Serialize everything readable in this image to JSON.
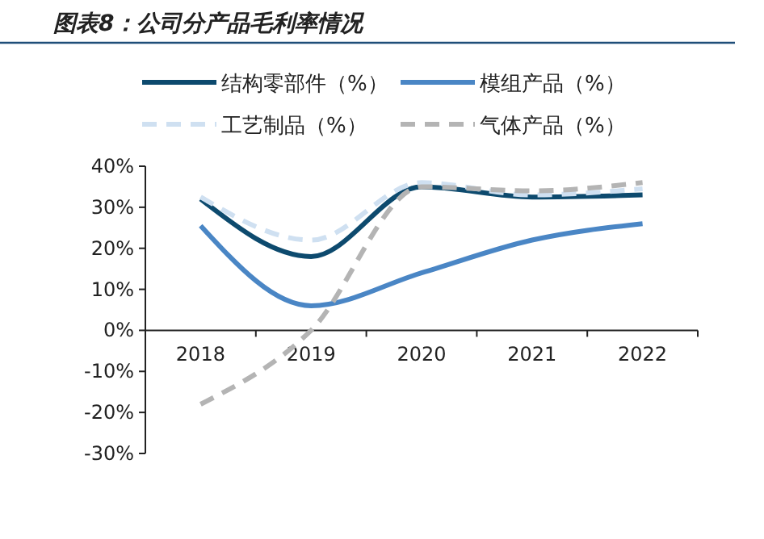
{
  "chart_data": {
    "type": "line",
    "title": "图表8：公司分产品毛利率情况",
    "categories": [
      "2018",
      "2019",
      "2020",
      "2021",
      "2022"
    ],
    "series": [
      {
        "name": "结构零部件（%）",
        "color": "#0d4a6e",
        "values": [
          32,
          18,
          35,
          32.5,
          33
        ],
        "line_style": "solid"
      },
      {
        "name": "模组产品（%）",
        "color": "#4a86c5",
        "values": [
          25.5,
          6,
          14,
          22,
          26
        ],
        "line_style": "solid"
      },
      {
        "name": "工艺制品（%）",
        "color": "#cfe0f1",
        "values": [
          32.5,
          22,
          36,
          33,
          34.5
        ],
        "line_style": "dashed"
      },
      {
        "name": "气体产品（%）",
        "color": "#b4b4b4",
        "values": [
          -18,
          0,
          35,
          34,
          36
        ],
        "line_style": "dashed"
      }
    ],
    "ylim": [
      -30,
      40
    ],
    "yticks": [
      {
        "value": -30,
        "label": "-30%"
      },
      {
        "value": -20,
        "label": "-20%"
      },
      {
        "value": -10,
        "label": "-10%"
      },
      {
        "value": 0,
        "label": "0%"
      },
      {
        "value": 10,
        "label": "10%"
      },
      {
        "value": 20,
        "label": "20%"
      },
      {
        "value": 30,
        "label": "30%"
      },
      {
        "value": 40,
        "label": "40%"
      }
    ],
    "grid": false,
    "legend": "top",
    "marker": "none"
  }
}
